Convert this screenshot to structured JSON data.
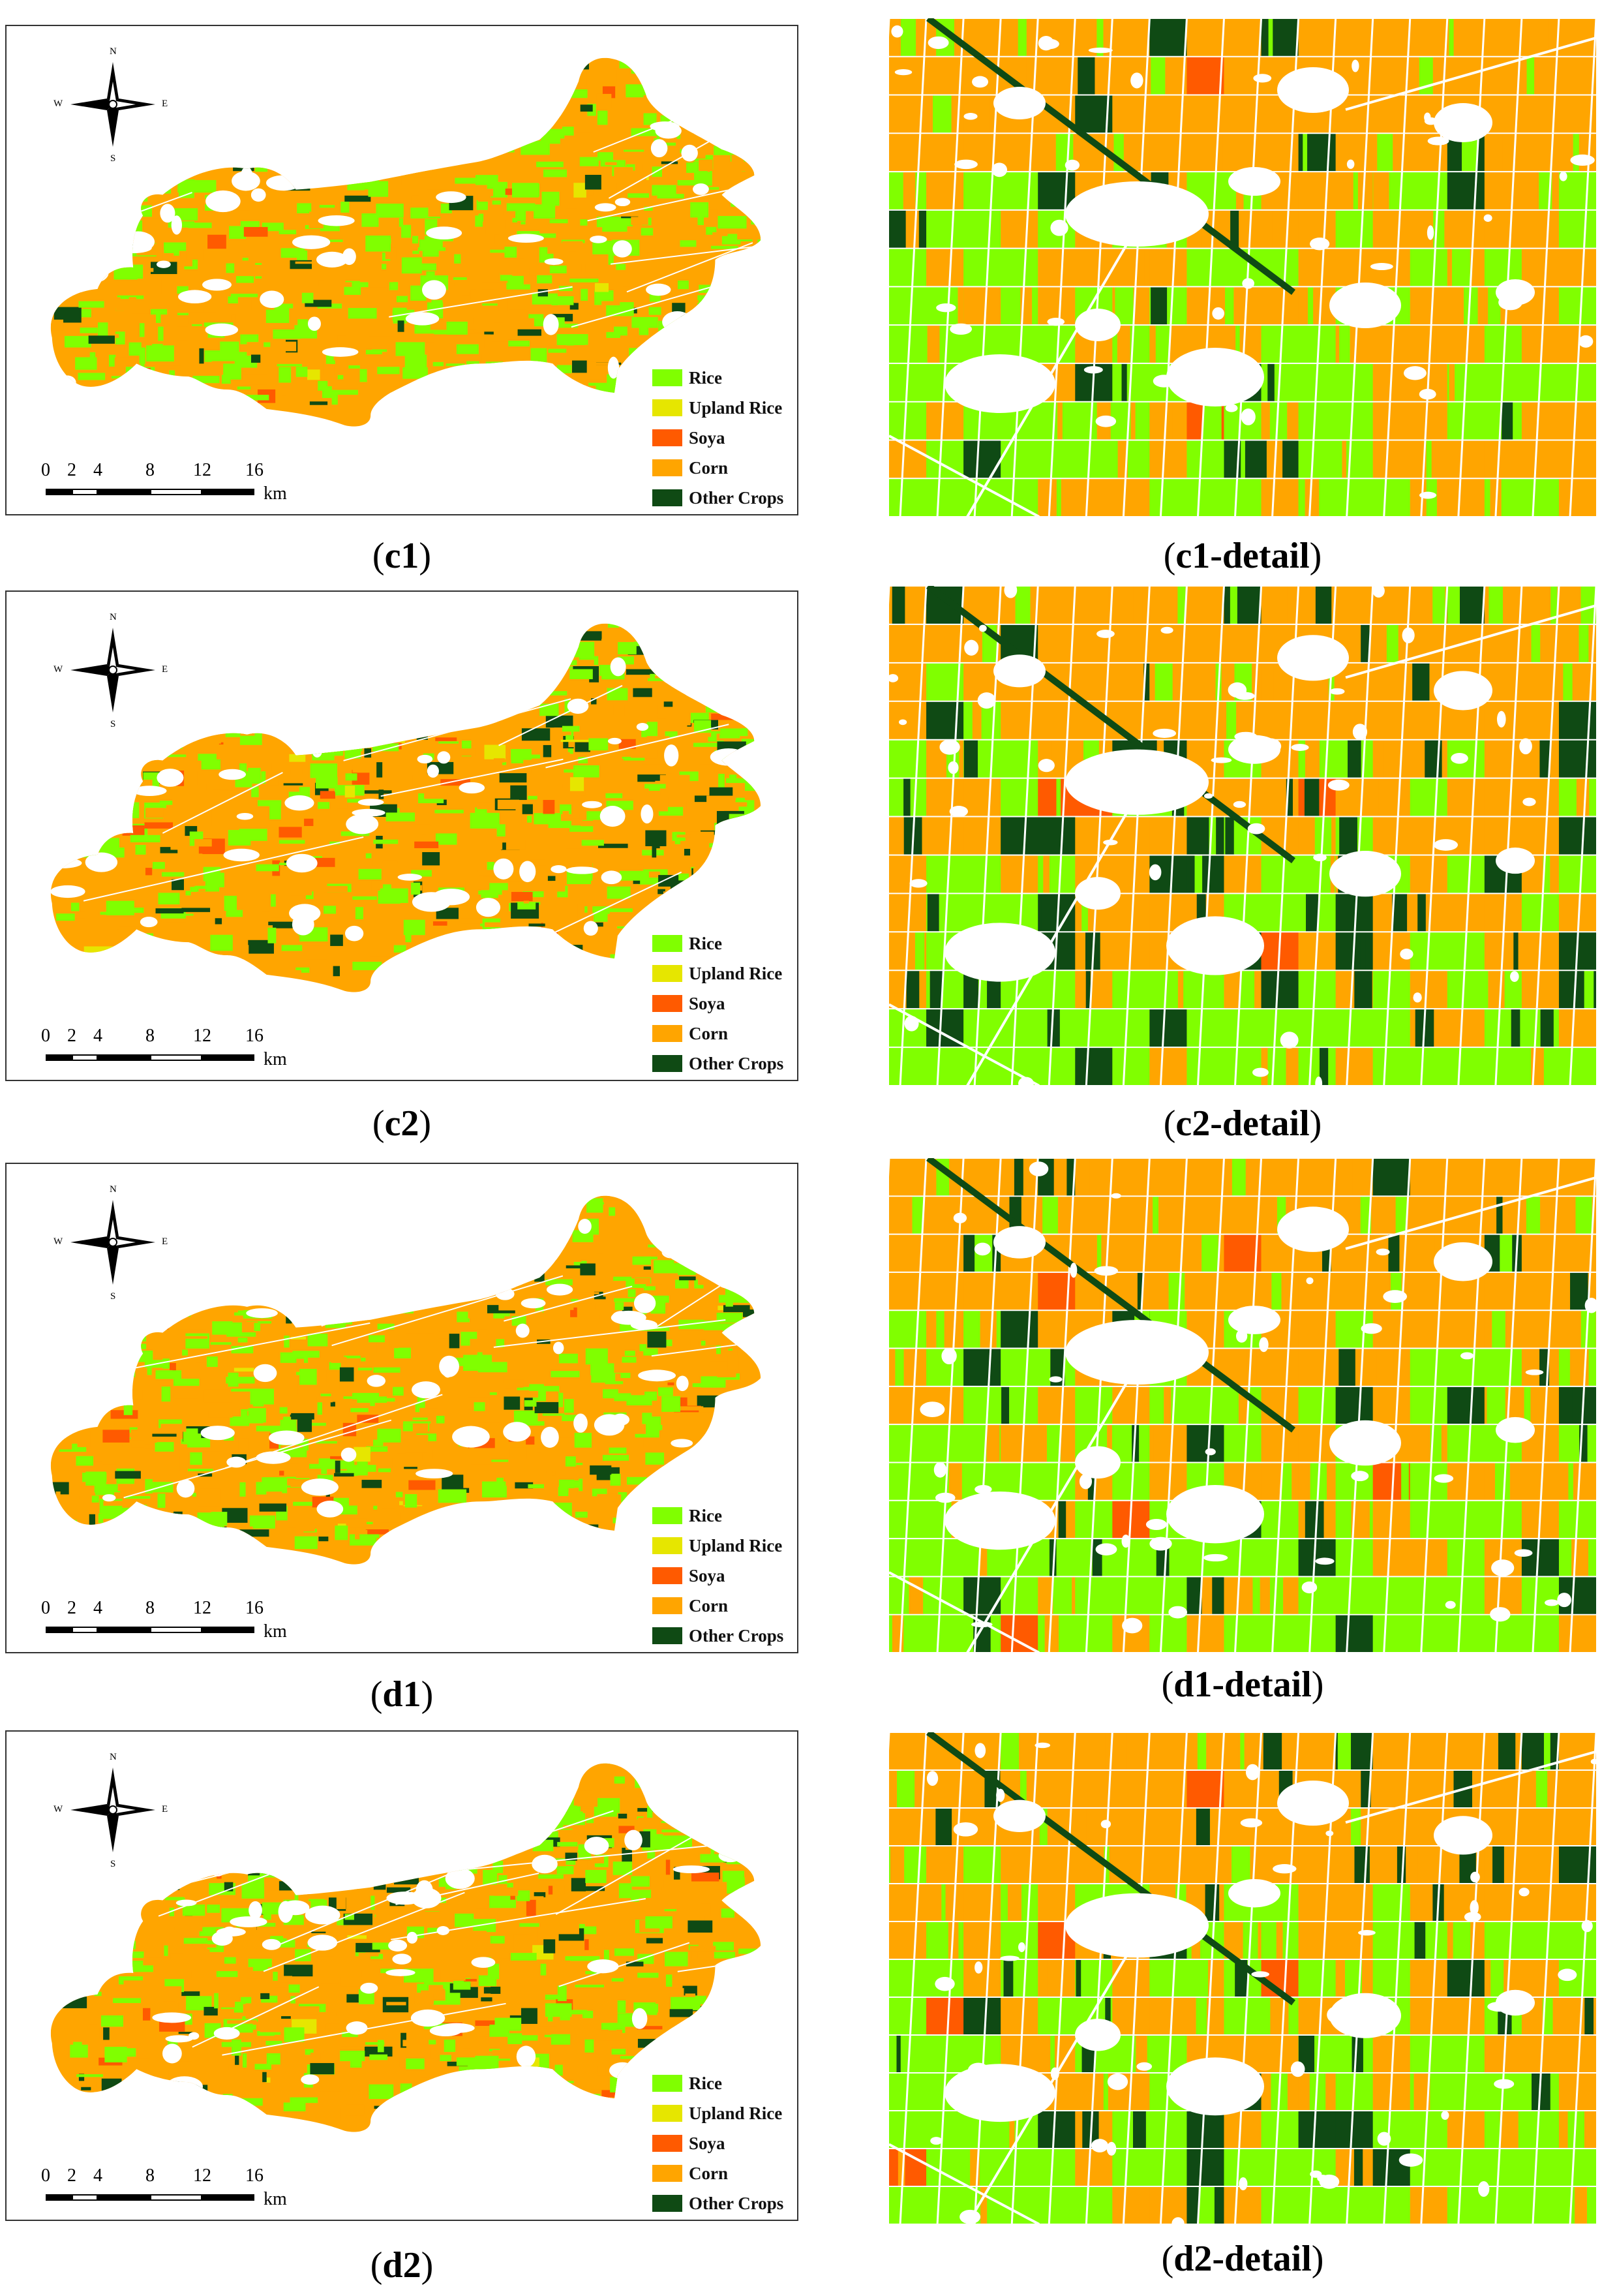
{
  "legend": {
    "items": [
      {
        "label": "Rice",
        "color": "#80ff00"
      },
      {
        "label": "Upland Rice",
        "color": "#e6e600"
      },
      {
        "label": "Soya",
        "color": "#ff5a00"
      },
      {
        "label": "Corn",
        "color": "#ffa500"
      },
      {
        "label": "Other Crops",
        "color": "#0f4a14"
      }
    ]
  },
  "scale_bar": {
    "ticks": [
      "0",
      "2",
      "4",
      "8",
      "12",
      "16"
    ],
    "unit": "km"
  },
  "compass": {
    "n": "N",
    "s": "S",
    "e": "E",
    "w": "W"
  },
  "panels": [
    {
      "id": "c1",
      "caption_open": "(",
      "caption_label": "c1",
      "caption_close": ")",
      "detail_open": "(",
      "detail_label": "c1-detail",
      "detail_close": ")",
      "other_share": "low",
      "soya_share": "very low"
    },
    {
      "id": "c2",
      "caption_open": "(",
      "caption_label": "c2",
      "caption_close": ")",
      "detail_open": "(",
      "detail_label": "c2-detail",
      "detail_close": ")",
      "other_share": "high",
      "soya_share": "low"
    },
    {
      "id": "d1",
      "caption_open": "(",
      "caption_label": "d1",
      "caption_close": ")",
      "detail_open": "(",
      "detail_label": "d1-detail",
      "detail_close": ")",
      "other_share": "medium",
      "soya_share": "low"
    },
    {
      "id": "d2",
      "caption_open": "(",
      "caption_label": "d2",
      "caption_close": ")",
      "detail_open": "(",
      "detail_label": "d2-detail",
      "detail_close": ")",
      "other_share": "high",
      "soya_share": "low"
    }
  ]
}
